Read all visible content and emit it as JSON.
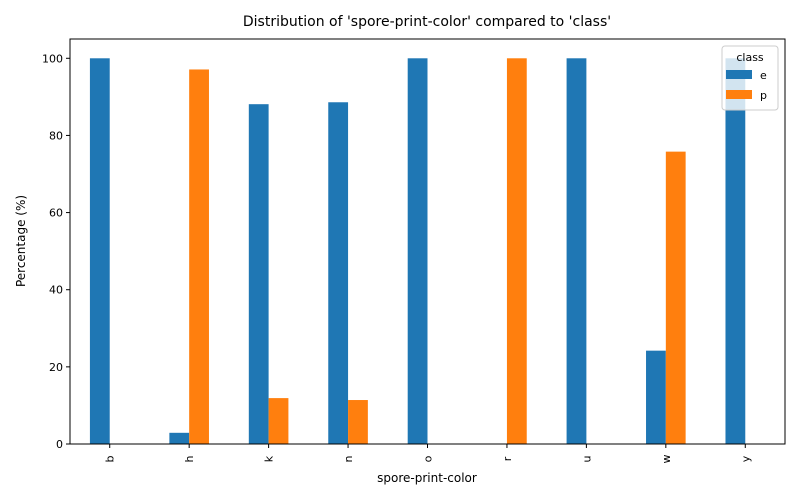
{
  "chart_data": {
    "type": "bar",
    "title": "Distribution of 'spore-print-color' compared to 'class'",
    "xlabel": "spore-print-color",
    "ylabel": "Percentage (%)",
    "ylim": [
      0,
      105
    ],
    "yticks": [
      0,
      20,
      40,
      60,
      80,
      100
    ],
    "categories": [
      "b",
      "h",
      "k",
      "n",
      "o",
      "r",
      "u",
      "w",
      "y"
    ],
    "series": [
      {
        "name": "e",
        "color": "#1f77b4",
        "values": [
          100,
          2.9,
          88.1,
          88.6,
          100,
          0,
          100,
          24.2,
          100
        ]
      },
      {
        "name": "p",
        "color": "#ff7f0e",
        "values": [
          0,
          97.1,
          11.9,
          11.4,
          0,
          100,
          0,
          75.8,
          0
        ]
      }
    ],
    "legend": {
      "title": "class",
      "placement": "top-right"
    },
    "grid": false
  }
}
